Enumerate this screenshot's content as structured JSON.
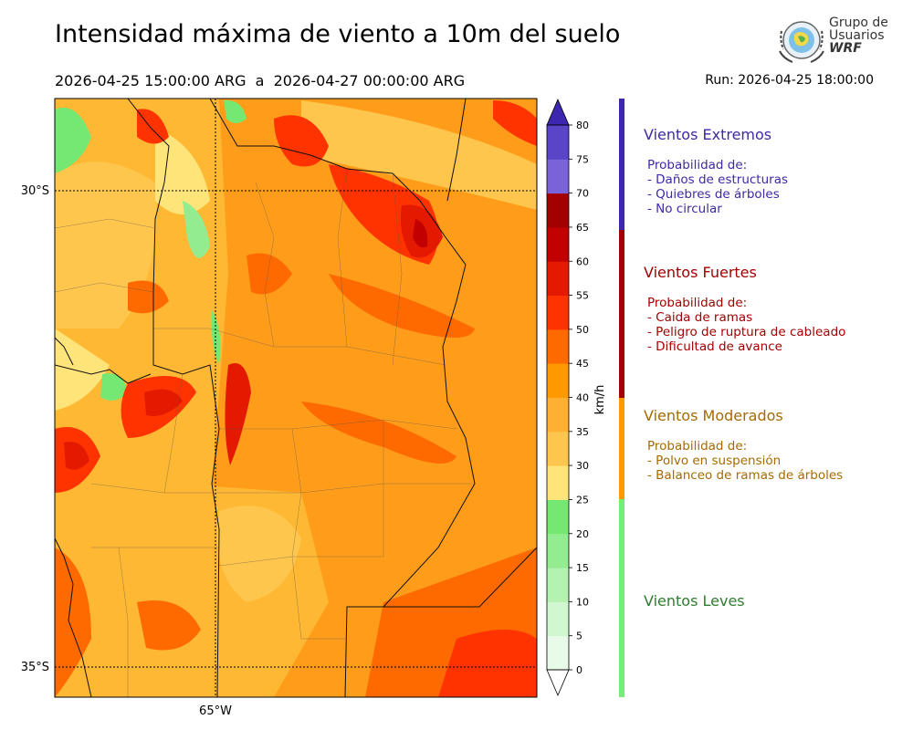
{
  "header": {
    "title": "Intensidad máxima de viento a 10m del suelo",
    "period": "2026-04-25 15:00:00 ARG  a  2026-04-27 00:00:00 ARG",
    "run": "Run: 2026-04-25 18:00:00"
  },
  "logo": {
    "line1": "Grupo de",
    "line2": "Usuarios",
    "line3": "WRF"
  },
  "map": {
    "lat_labels": [
      "30°S",
      "35°S"
    ],
    "lon_labels": [
      "65°W"
    ]
  },
  "colorbar": {
    "unit": "km/h",
    "ticks": [
      "0",
      "5",
      "10",
      "15",
      "20",
      "25",
      "30",
      "35",
      "40",
      "45",
      "50",
      "55",
      "60",
      "65",
      "70",
      "75",
      "80"
    ],
    "colors": [
      "#e8fbe8",
      "#d0f7cf",
      "#b4f2b2",
      "#93ec8f",
      "#74e873",
      "#ffe47a",
      "#ffc64d",
      "#ffb033",
      "#ff9900",
      "#ff6a00",
      "#ff3300",
      "#e41a00",
      "#c20000",
      "#a30000",
      "#7a62d8",
      "#5a44c8",
      "#3d27b0"
    ],
    "over_color": "#3d27b0"
  },
  "legend": [
    {
      "title": "Vientos Extremos",
      "subtitle": "Probabilidad de:",
      "items": [
        "- Daños de estructuras",
        "- Quiebres de árboles",
        "- No circular"
      ],
      "color": "#3c2aa6"
    },
    {
      "title": "Vientos Fuertes",
      "subtitle": "Probabilidad de:",
      "items": [
        "- Caida de ramas",
        "- Peligro de ruptura de cableado",
        "- Dificultad de avance"
      ],
      "color": "#a30000"
    },
    {
      "title": "Vientos Moderados",
      "subtitle": "Probabilidad de:",
      "items": [
        "- Polvo en suspensión",
        "- Balanceo de ramas de árboles"
      ],
      "color": "#a66a00"
    },
    {
      "title": "Vientos Leves",
      "color": "#2f7d2f"
    }
  ],
  "legend_bars": [
    "#3d27b0",
    "#a30000",
    "#ff9900",
    "#74ee74"
  ]
}
